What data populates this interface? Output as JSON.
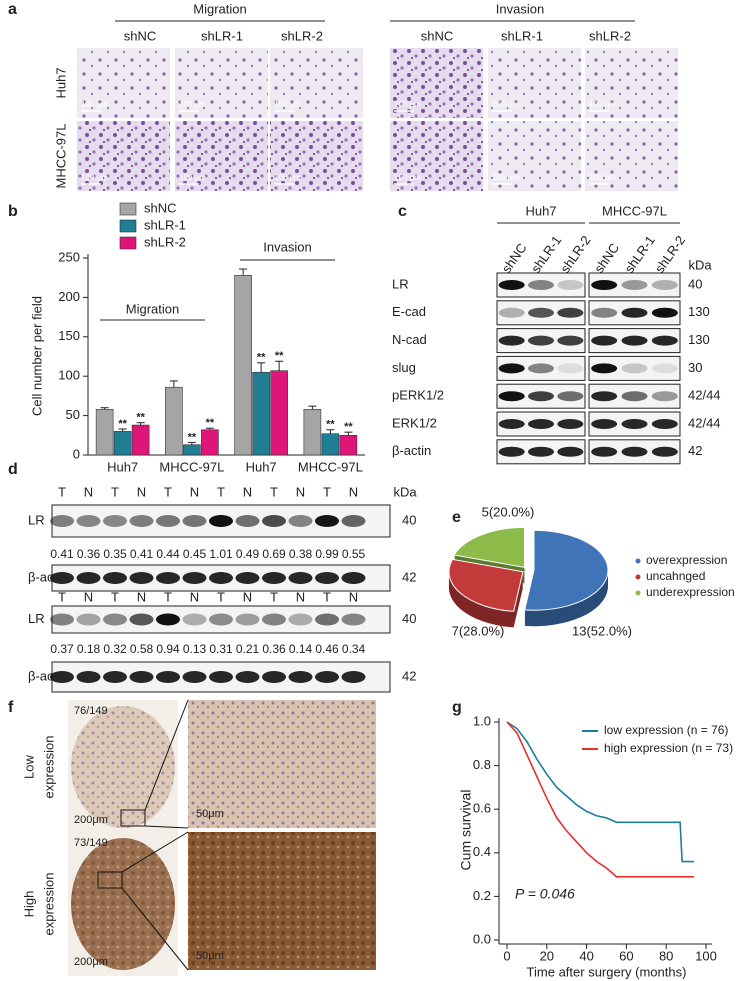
{
  "panel_labels": [
    "a",
    "b",
    "c",
    "d",
    "e",
    "f",
    "g"
  ],
  "panel_a": {
    "groups": [
      "Migration",
      "Invasion"
    ],
    "columns": [
      "shNC",
      "shLR-1",
      "shLR-2"
    ],
    "rows": [
      "Huh7",
      "MHCC-97L"
    ],
    "scale_bar": "100 μm"
  },
  "panel_c": {
    "cell_lines": [
      "Huh7",
      "MHCC-97L"
    ],
    "lanes": [
      "shNC",
      "shLR-1",
      "shLR-2"
    ],
    "unit": "kDa",
    "rows": [
      {
        "label": "LR",
        "kda": 40
      },
      {
        "label": "E-cad",
        "kda": 130
      },
      {
        "label": "N-cad",
        "kda": 130
      },
      {
        "label": "slug",
        "kda": 30
      },
      {
        "label": "pERK1/2",
        "kda": "42/44"
      },
      {
        "label": "ERK1/2",
        "kda": "42/44"
      },
      {
        "label": "β-actin",
        "kda": 42
      }
    ]
  },
  "panel_d": {
    "unit": "kDa",
    "blocks": [
      {
        "lanes": [
          "T",
          "N",
          "T",
          "N",
          "T",
          "N",
          "T",
          "N",
          "T",
          "N",
          "T",
          "N"
        ],
        "rows": [
          {
            "label": "LR",
            "kda": 40
          },
          {
            "label": "β-actin",
            "kda": 42
          }
        ],
        "ratios": [
          0.41,
          0.36,
          0.35,
          0.41,
          0.44,
          0.45,
          1.01,
          0.49,
          0.69,
          0.38,
          0.99,
          0.55
        ]
      },
      {
        "lanes": [
          "T",
          "N",
          "T",
          "N",
          "T",
          "N",
          "T",
          "N",
          "T",
          "N",
          "T",
          "N"
        ],
        "rows": [
          {
            "label": "LR",
            "kda": 40
          },
          {
            "label": "β-actin",
            "kda": 42
          }
        ],
        "ratios": [
          0.37,
          0.18,
          0.32,
          0.58,
          0.94,
          0.13,
          0.31,
          0.21,
          0.36,
          0.14,
          0.46,
          0.34
        ]
      }
    ]
  },
  "panel_f": {
    "rows": [
      {
        "label_lines": [
          "Low",
          "expression"
        ],
        "count": "76/149"
      },
      {
        "label_lines": [
          "High",
          "expression"
        ],
        "count": "73/149"
      }
    ],
    "scale_bars": [
      "200μm",
      "50μm"
    ]
  },
  "chart_data": [
    {
      "type": "bar",
      "y_label": "Cell number per field",
      "categories": [
        "Huh7",
        "MHCC-97L",
        "Huh7",
        "MHCC-97L"
      ],
      "group_labels": [
        "Migration",
        "Invasion"
      ],
      "series": [
        {
          "name": "shNC",
          "color": "#a5a5a5",
          "values": [
            58,
            86,
            228,
            58
          ],
          "errors": [
            2,
            8,
            8,
            4
          ]
        },
        {
          "name": "shLR-1",
          "color": "#1f7d94",
          "values": [
            30,
            13,
            105,
            27
          ],
          "errors": [
            3,
            3,
            12,
            5
          ],
          "markers": [
            "**",
            "**",
            "**",
            "**"
          ]
        },
        {
          "name": "shLR-2",
          "color": "#e0157a",
          "values": [
            38,
            32,
            107,
            25
          ],
          "errors": [
            3,
            2,
            12,
            4
          ],
          "markers": [
            "**",
            "**",
            "**",
            "**"
          ]
        }
      ],
      "ylim": [
        0,
        250
      ],
      "yticks": [
        0,
        50,
        100,
        150,
        200,
        250
      ],
      "grid": false
    },
    {
      "type": "pie",
      "categories": [
        "overexpression",
        "uncahnged",
        "underexpression"
      ],
      "values": [
        13,
        7,
        5
      ],
      "value_labels": [
        "13(52.0%)",
        "7(28.0%)",
        "5(20.0%)"
      ],
      "colors": [
        "#3f74b8",
        "#c23b3a",
        "#8dbb4a"
      ]
    },
    {
      "type": "line",
      "x_label": "Time after surgery (months)",
      "y_label": "Cum survival",
      "annotation": "P = 0.046",
      "xlim": [
        0,
        100
      ],
      "ylim": [
        0,
        1
      ],
      "xticks": [
        0,
        20,
        40,
        60,
        80,
        100
      ],
      "yticks": [
        {
          "value": 0,
          "label": "0.0"
        },
        {
          "value": 0.2,
          "label": "0.2"
        },
        {
          "value": 0.4,
          "label": "0.4"
        },
        {
          "value": 0.6,
          "label": "0.6"
        },
        {
          "value": 0.8,
          "label": "0.8"
        },
        {
          "value": 1,
          "label": "1.0"
        }
      ],
      "series": [
        {
          "name": "low expression (n = 76)",
          "color": "#1f7d9c",
          "x": [
            0,
            5,
            10,
            15,
            20,
            25,
            30,
            35,
            40,
            45,
            50,
            55,
            60,
            70,
            80,
            87,
            88,
            94
          ],
          "values": [
            1,
            0.97,
            0.91,
            0.83,
            0.76,
            0.7,
            0.66,
            0.62,
            0.59,
            0.57,
            0.56,
            0.54,
            0.54,
            0.54,
            0.54,
            0.54,
            0.36,
            0.36
          ]
        },
        {
          "name": "high expression (n = 73)",
          "color": "#e2322b",
          "x": [
            0,
            5,
            10,
            15,
            20,
            25,
            30,
            35,
            40,
            45,
            50,
            55,
            60,
            70,
            80,
            90,
            94
          ],
          "values": [
            1,
            0.95,
            0.85,
            0.75,
            0.65,
            0.56,
            0.5,
            0.45,
            0.4,
            0.36,
            0.33,
            0.29,
            0.29,
            0.29,
            0.29,
            0.29,
            0.29
          ]
        }
      ]
    }
  ]
}
